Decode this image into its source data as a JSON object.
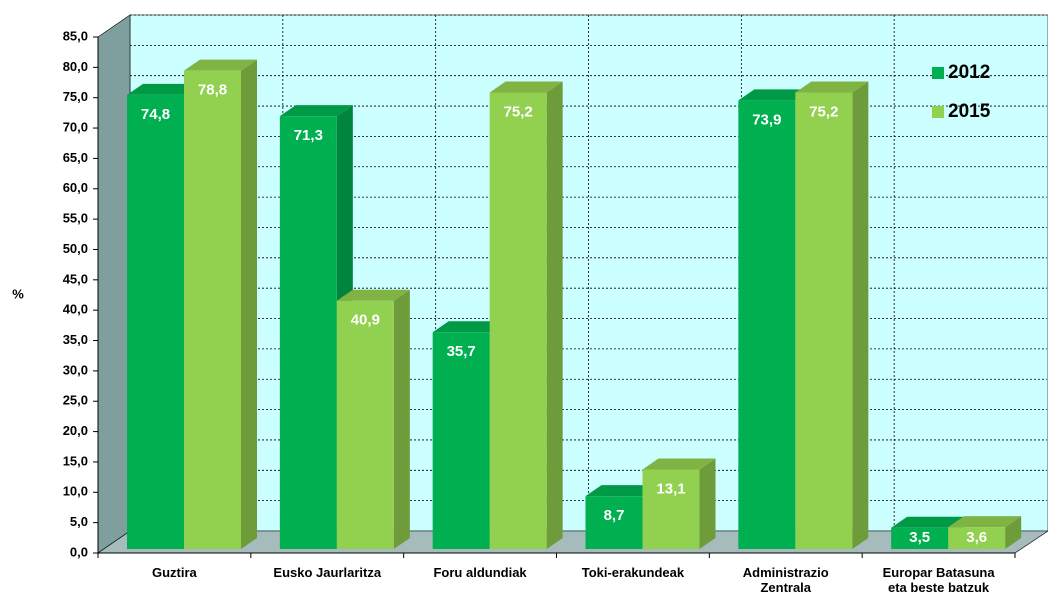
{
  "chart_data": {
    "type": "bar3d",
    "ylabel": "%",
    "categories": [
      "Guztira",
      "Eusko Jaurlaritza",
      "Foru aldundiak",
      "Toki-erakundeak",
      "Administrazio Zentrala",
      "Europar Batasuna eta beste batzuk"
    ],
    "series": [
      {
        "name": "2012",
        "color": "#00b050",
        "values": [
          74.8,
          71.3,
          35.7,
          8.7,
          73.9,
          3.5
        ],
        "value_labels": [
          "74,8",
          "71,3",
          "35,7",
          "8,7",
          "73,9",
          "3,5"
        ]
      },
      {
        "name": "2015",
        "color": "#92d050",
        "values": [
          78.8,
          40.9,
          75.2,
          13.1,
          75.2,
          3.6
        ],
        "value_labels": [
          "78,8",
          "40,9",
          "75,2",
          "13,1",
          "75,2",
          "3,6"
        ]
      }
    ],
    "ylim": [
      0,
      85
    ],
    "yticks": [
      {
        "value": 0,
        "label": "0,0"
      },
      {
        "value": 5,
        "label": "5,0"
      },
      {
        "value": 10,
        "label": "10,0"
      },
      {
        "value": 15,
        "label": "15,0"
      },
      {
        "value": 20,
        "label": "20,0"
      },
      {
        "value": 25,
        "label": "25,0"
      },
      {
        "value": 30,
        "label": "30,0"
      },
      {
        "value": 35,
        "label": "35,0"
      },
      {
        "value": 40,
        "label": "40,0"
      },
      {
        "value": 45,
        "label": "45,0"
      },
      {
        "value": 50,
        "label": "50,0"
      },
      {
        "value": 55,
        "label": "55,0"
      },
      {
        "value": 60,
        "label": "60,0"
      },
      {
        "value": 65,
        "label": "65,0"
      },
      {
        "value": 70,
        "label": "70,0"
      },
      {
        "value": 75,
        "label": "75,0"
      },
      {
        "value": 80,
        "label": "80,0"
      },
      {
        "value": 85,
        "label": "85,0"
      }
    ],
    "grid": true,
    "legend": "top-right"
  }
}
